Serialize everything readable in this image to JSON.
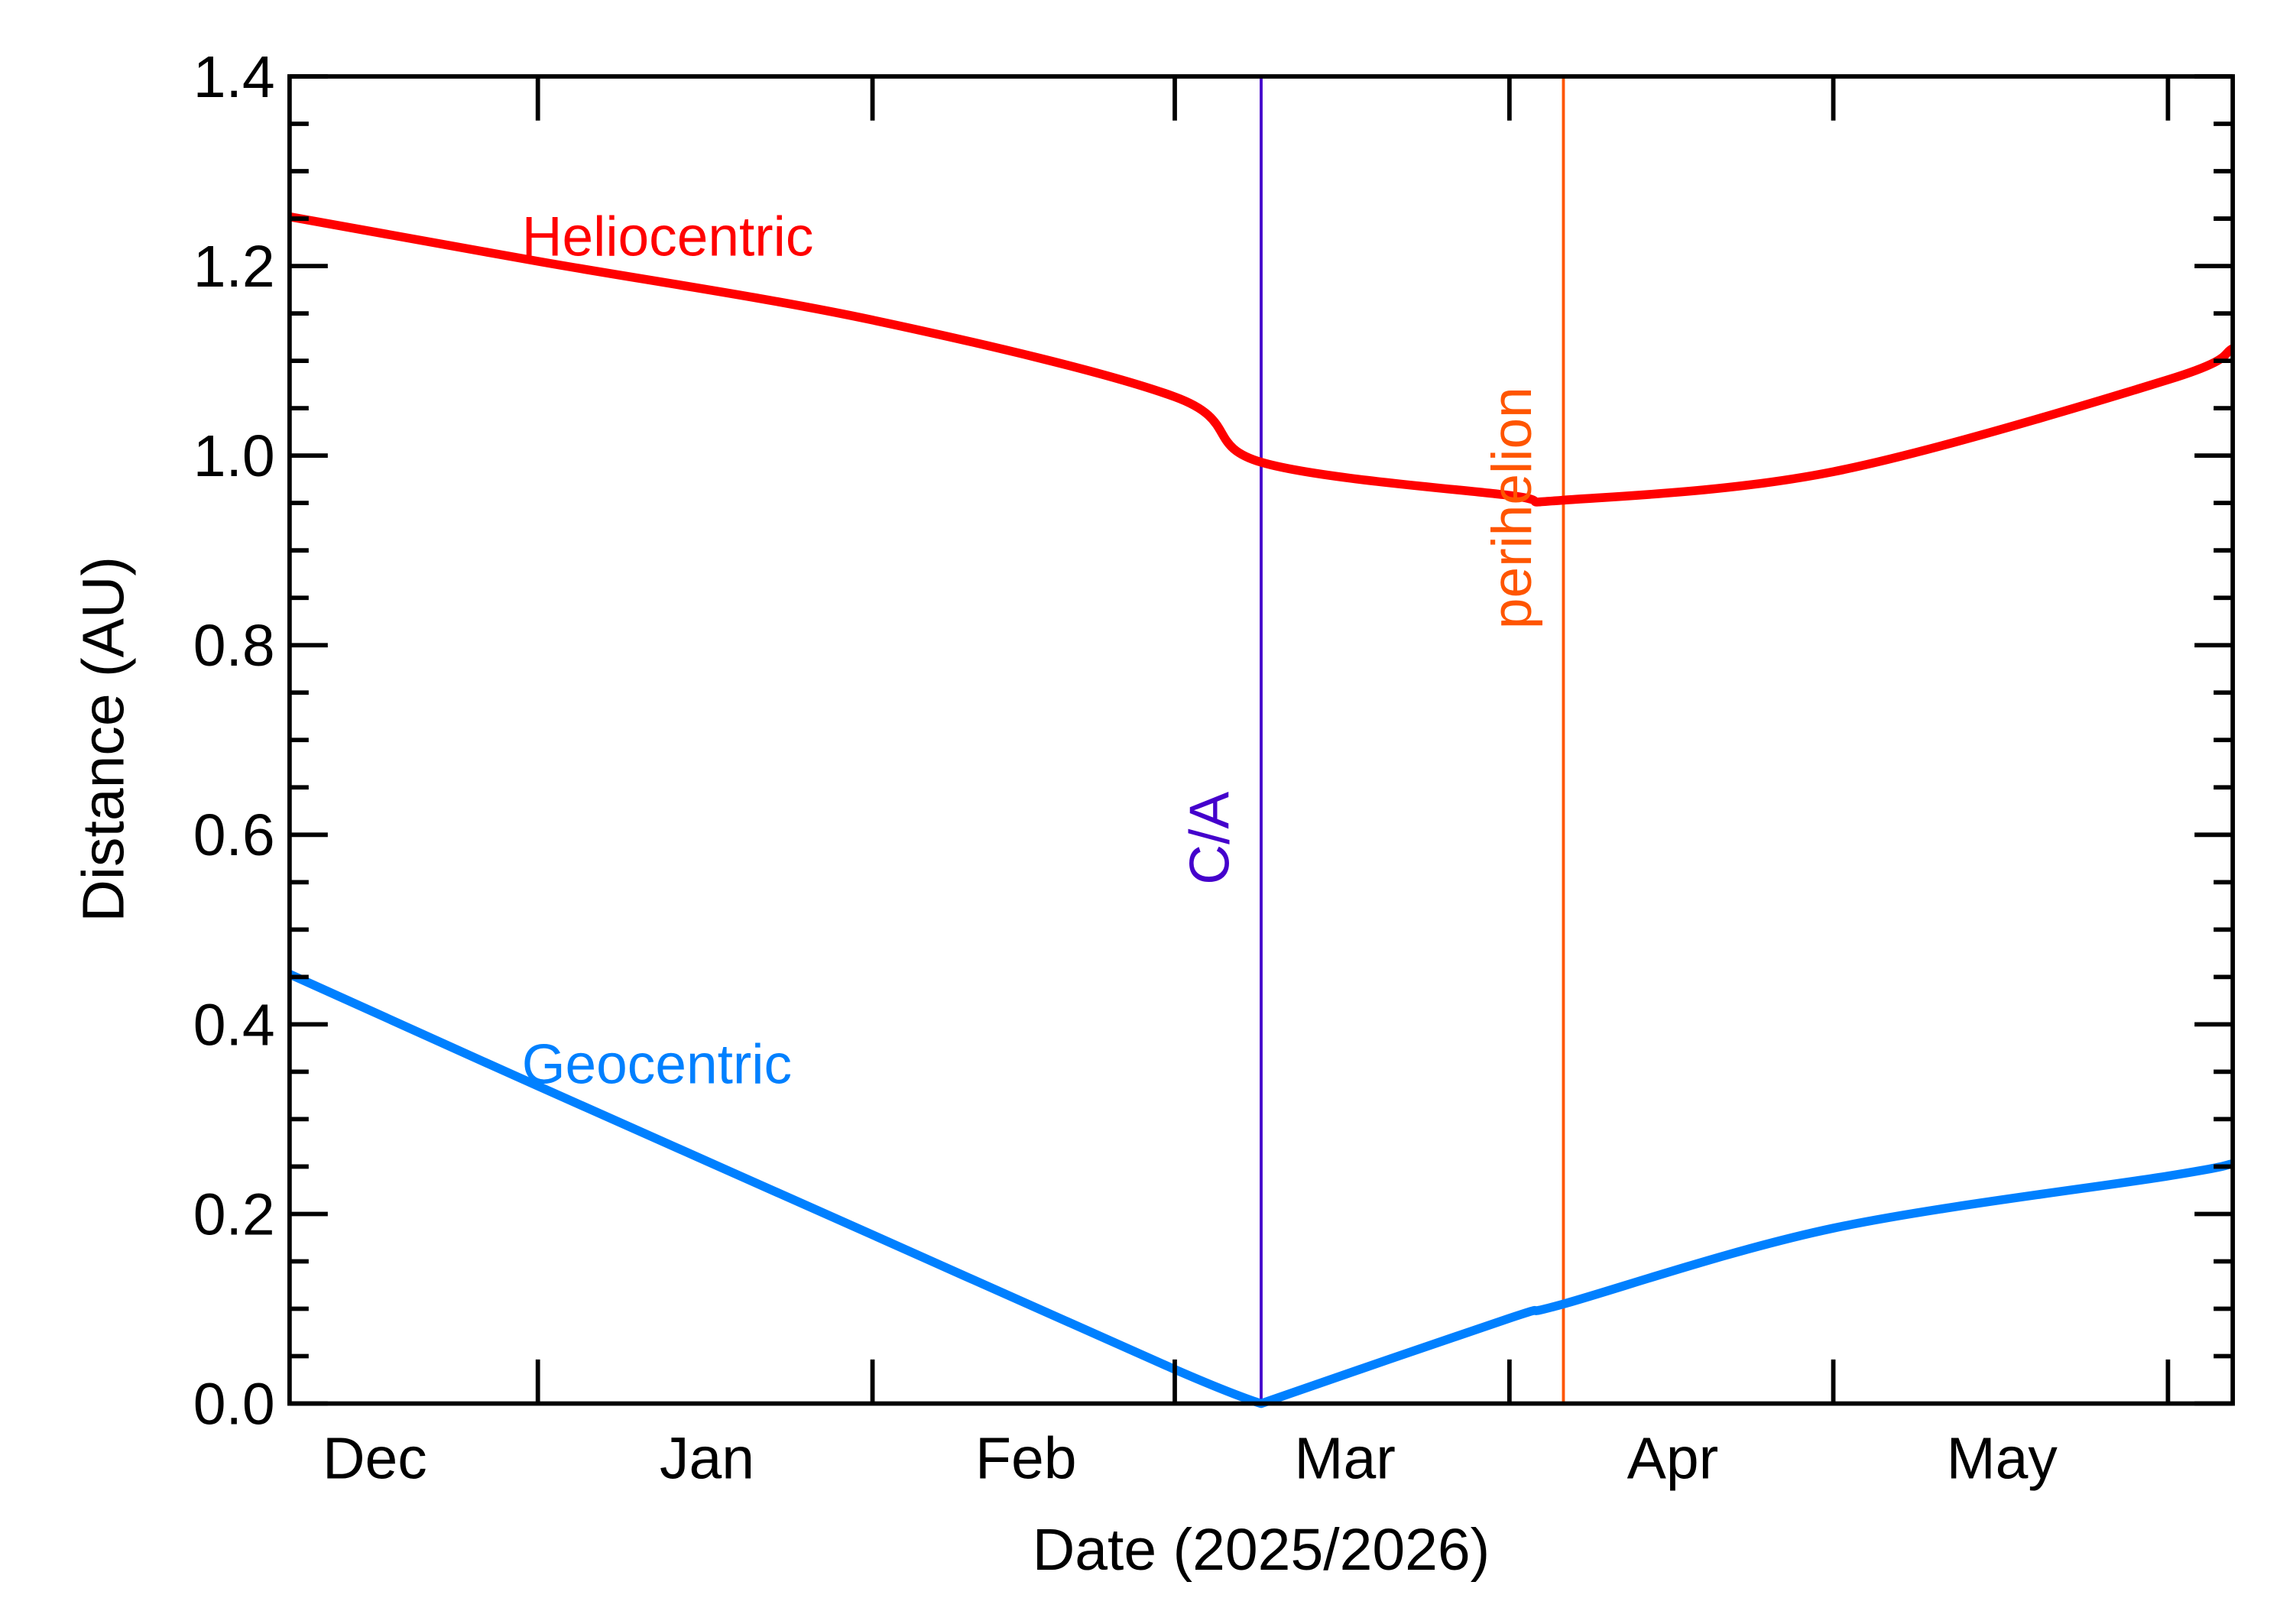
{
  "chart_data": {
    "type": "line",
    "xlabel": "Date (2025/2026)",
    "ylabel": "Distance (AU)",
    "xlim": [
      "2025-12-09",
      "2026-06-07"
    ],
    "ylim": [
      0.0,
      1.4
    ],
    "x_tick_labels": [
      "Dec",
      "Jan",
      "Feb",
      "Mar",
      "Apr",
      "May"
    ],
    "y_ticks": [
      0.0,
      0.2,
      0.4,
      0.6,
      0.8,
      1.0,
      1.2,
      1.4
    ],
    "y_tick_labels": [
      "0.0",
      "0.2",
      "0.4",
      "0.6",
      "0.8",
      "1.0",
      "1.2",
      "1.4"
    ],
    "grid": false,
    "series": [
      {
        "name": "Heliocentric",
        "color": "#ff0000",
        "x": [
          "2025-12-09",
          "2026-01-01",
          "2026-02-01",
          "2026-03-01",
          "2026-03-09",
          "2026-04-01",
          "2026-04-06",
          "2026-05-01",
          "2026-06-01",
          "2026-06-07"
        ],
        "y": [
          1.252,
          1.205,
          1.143,
          1.062,
          0.993,
          0.958,
          0.953,
          0.983,
          1.08,
          1.113
        ]
      },
      {
        "name": "Geocentric",
        "color": "#0080ff",
        "x": [
          "2025-12-09",
          "2026-01-01",
          "2026-02-01",
          "2026-03-01",
          "2026-03-09",
          "2026-04-01",
          "2026-04-06",
          "2026-05-01",
          "2026-06-01",
          "2026-06-07"
        ],
        "y": [
          0.453,
          0.335,
          0.178,
          0.036,
          0.0,
          0.09,
          0.105,
          0.185,
          0.24,
          0.253
        ]
      }
    ],
    "annotations": [
      {
        "label": "C/A",
        "date": "2026-03-09",
        "color": "#4400cc"
      },
      {
        "label": "perihelion",
        "date": "2026-04-06",
        "color": "#ff5500"
      }
    ]
  }
}
